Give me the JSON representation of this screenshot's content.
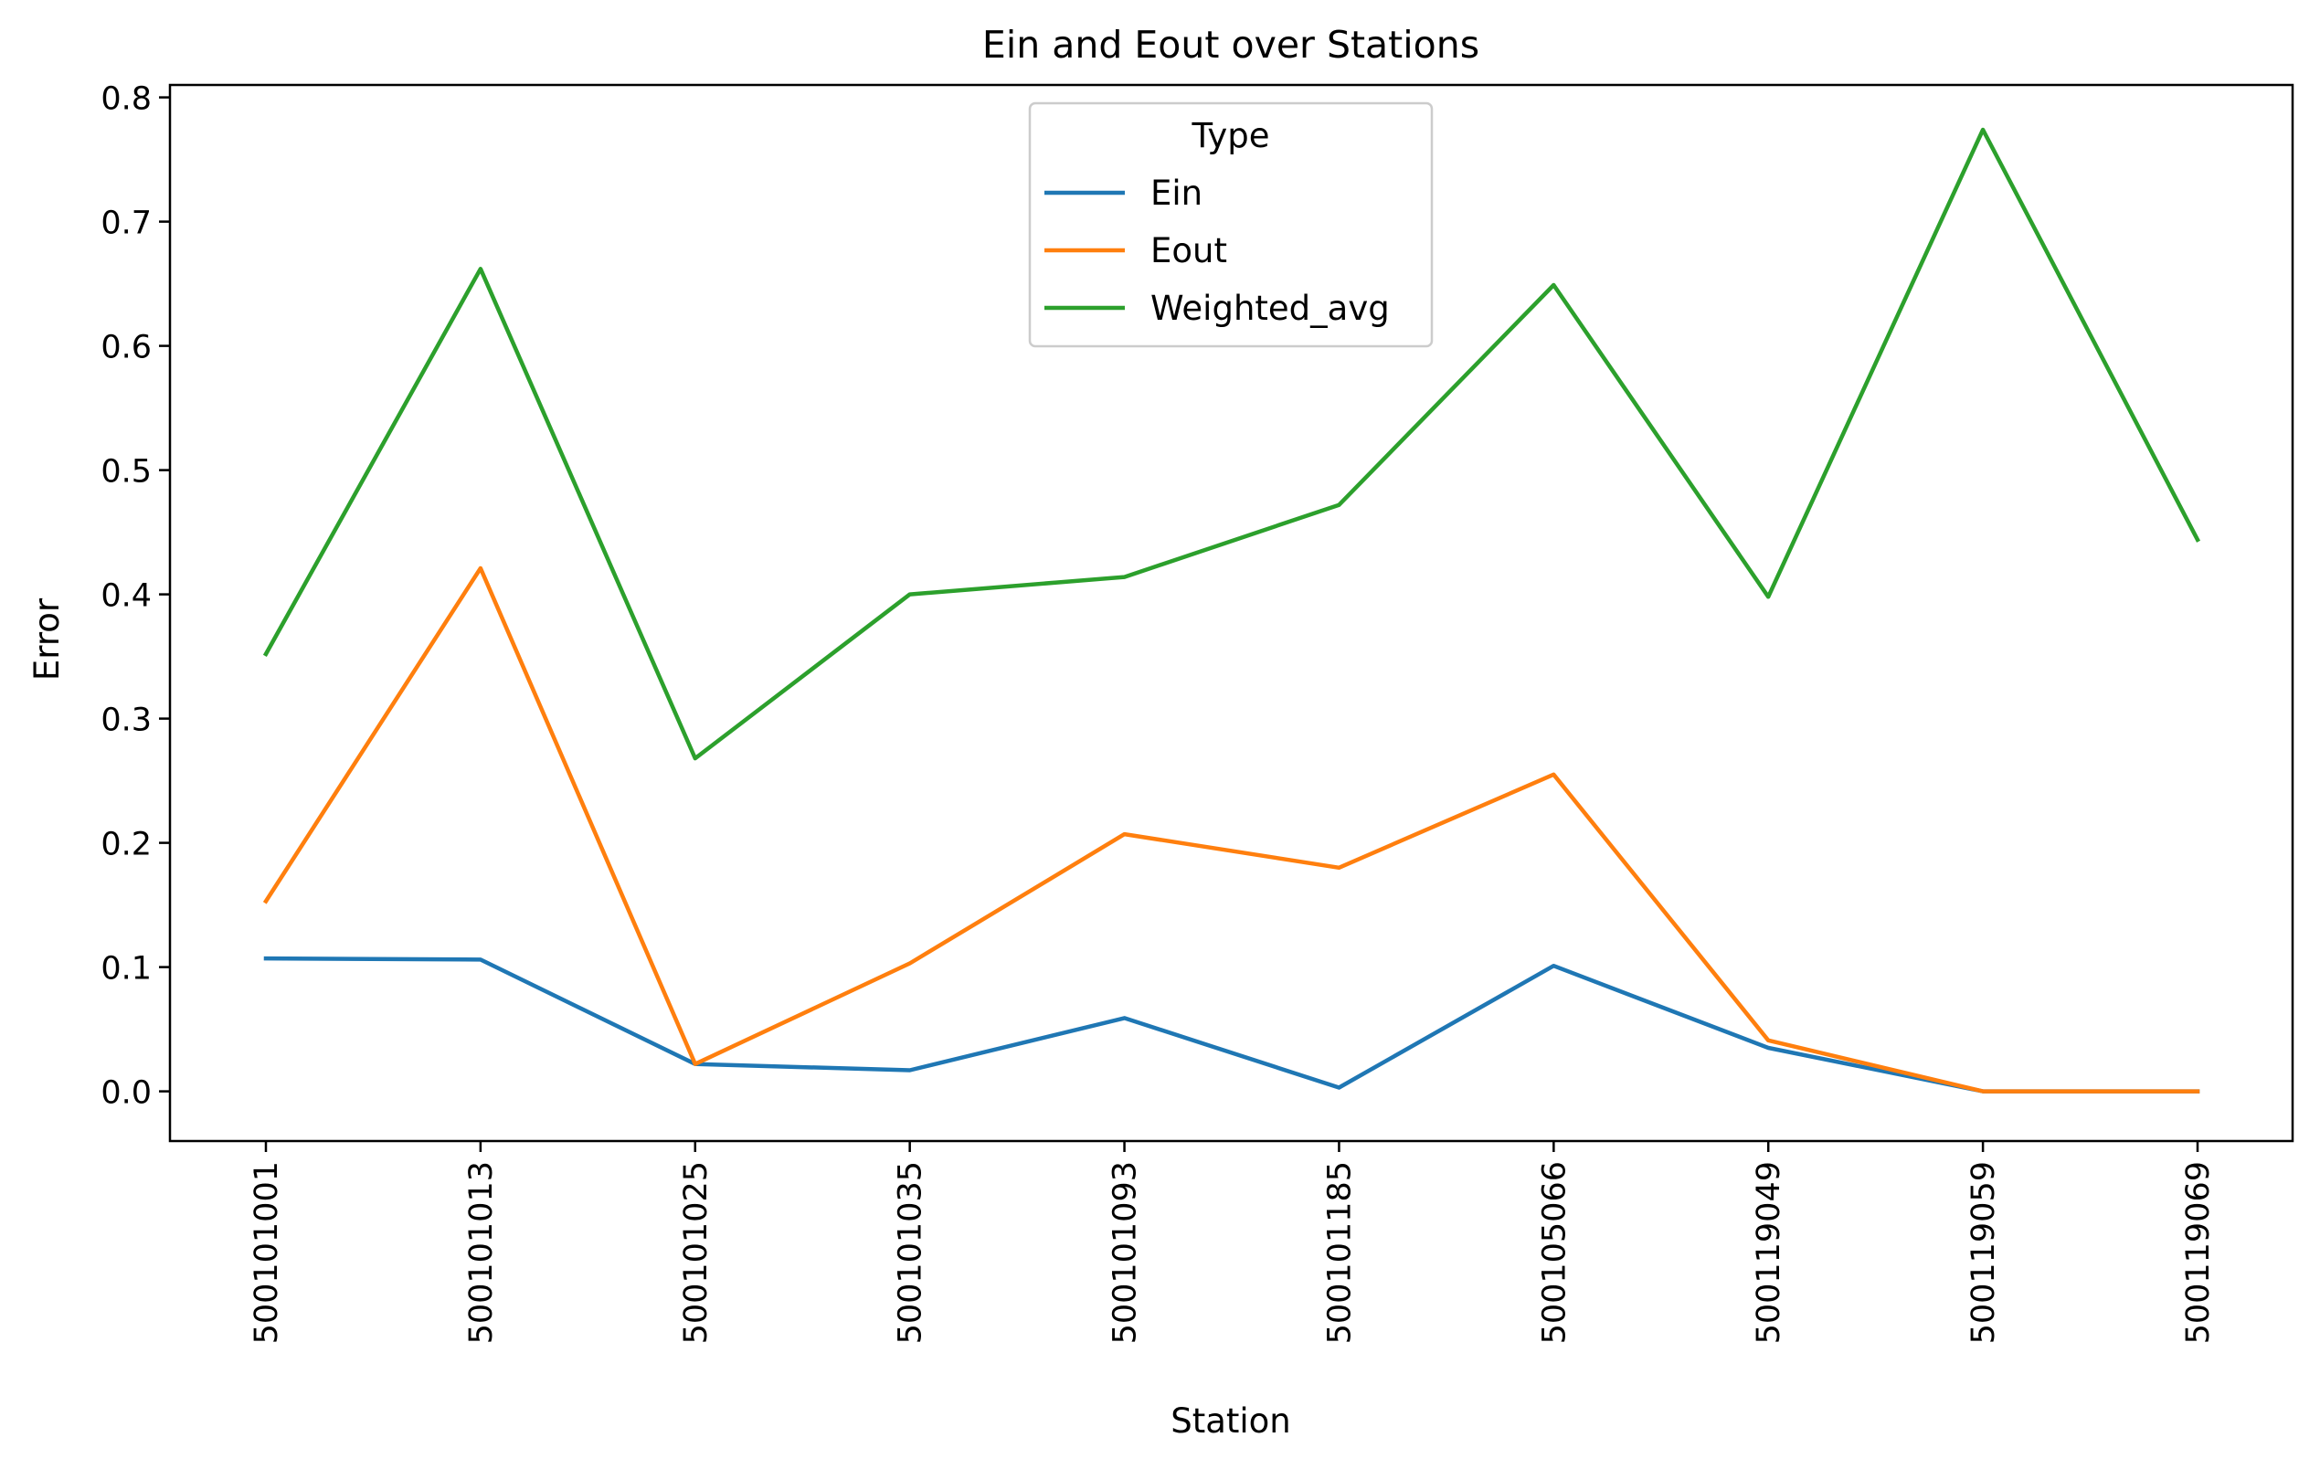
{
  "chart_data": {
    "type": "line",
    "title": "Ein and Eout over Stations",
    "xlabel": "Station",
    "ylabel": "Error",
    "categories": [
      "500101001",
      "500101013",
      "500101025",
      "500101035",
      "500101093",
      "500101185",
      "500105066",
      "500119049",
      "500119059",
      "500119069"
    ],
    "ylim": [
      -0.04,
      0.81
    ],
    "yticks": [
      0.0,
      0.1,
      0.2,
      0.3,
      0.4,
      0.5,
      0.6,
      0.7,
      0.8
    ],
    "ytick_labels": [
      "0.0",
      "0.1",
      "0.2",
      "0.3",
      "0.4",
      "0.5",
      "0.6",
      "0.7",
      "0.8"
    ],
    "grid": false,
    "legend": {
      "title": "Type",
      "placement": "upper center"
    },
    "series": [
      {
        "name": "Ein",
        "color": "#1f77b4",
        "values": [
          0.107,
          0.106,
          0.022,
          0.017,
          0.059,
          0.003,
          0.101,
          0.035,
          0.0,
          0.0
        ]
      },
      {
        "name": "Eout",
        "color": "#ff7f0e",
        "values": [
          0.153,
          0.421,
          0.022,
          0.103,
          0.207,
          0.18,
          0.255,
          0.041,
          0.0,
          0.0
        ]
      },
      {
        "name": "Weighted_avg",
        "color": "#2ca02c",
        "values": [
          0.352,
          0.662,
          0.268,
          0.4,
          0.414,
          0.472,
          0.649,
          0.398,
          0.774,
          0.444
        ]
      }
    ]
  }
}
